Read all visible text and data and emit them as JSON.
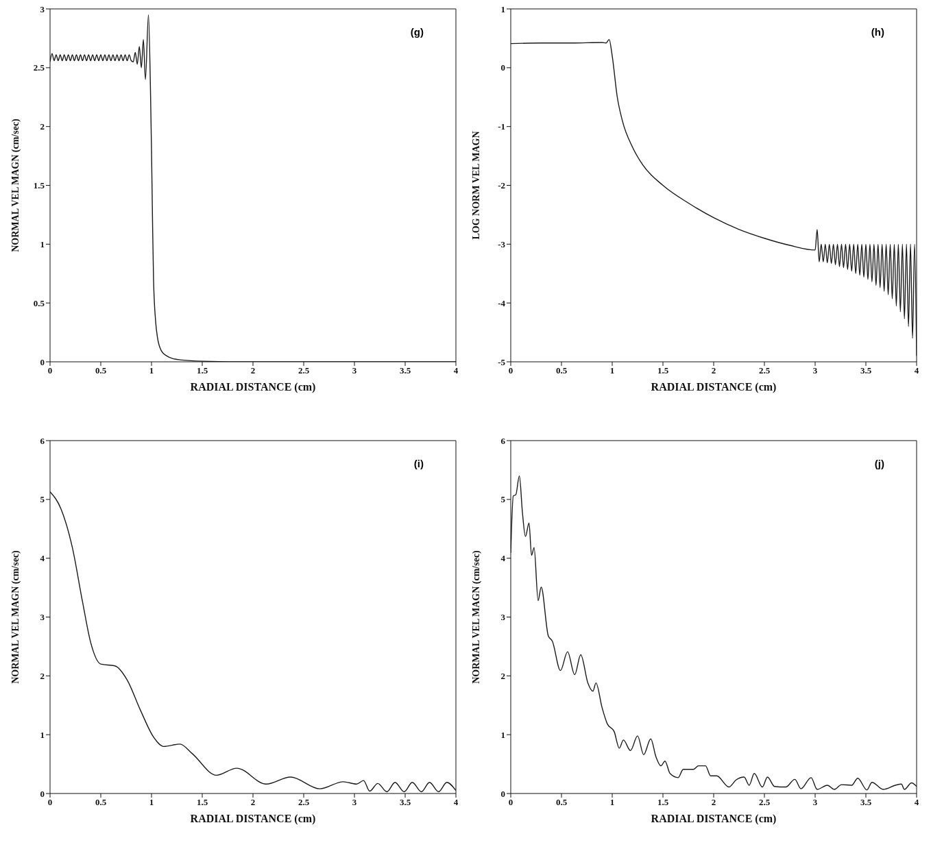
{
  "chart_data": [
    {
      "type": "line",
      "xlabel": "RADIAL DISTANCE (cm)",
      "ylabel": "NORMAL VEL MAGN (cm/sec)",
      "annotations": [
        "(g)"
      ],
      "line_style": "solid",
      "marker": "none",
      "xlim": [
        0,
        4
      ],
      "xticks": [
        0,
        0.5,
        1,
        1.5,
        2,
        2.5,
        3,
        3.5,
        4
      ],
      "ylim": [
        0,
        3
      ],
      "yticks": [
        0,
        0.5,
        1,
        1.5,
        2,
        2.5,
        3
      ],
      "x": [
        0,
        0.02,
        0.04,
        0.06,
        0.08,
        0.1,
        0.12,
        0.14,
        0.16,
        0.18,
        0.2,
        0.22,
        0.24,
        0.26,
        0.28,
        0.3,
        0.32,
        0.34,
        0.36,
        0.38,
        0.4,
        0.42,
        0.44,
        0.46,
        0.48,
        0.5,
        0.52,
        0.54,
        0.56,
        0.58,
        0.6,
        0.62,
        0.64,
        0.66,
        0.68,
        0.7,
        0.72,
        0.74,
        0.76,
        0.78,
        0.8,
        0.82,
        0.84,
        0.86,
        0.88,
        0.9,
        0.92,
        0.94,
        0.97,
        0.99,
        1.0,
        1.01,
        1.02,
        1.04,
        1.06,
        1.1,
        1.15,
        1.2,
        1.3,
        1.5,
        2,
        4
      ],
      "series": [
        {
          "color": "#1a1a1a",
          "values": [
            2.55,
            2.62,
            2.56,
            2.61,
            2.56,
            2.61,
            2.56,
            2.61,
            2.56,
            2.61,
            2.56,
            2.61,
            2.56,
            2.61,
            2.56,
            2.61,
            2.56,
            2.61,
            2.56,
            2.61,
            2.56,
            2.61,
            2.56,
            2.61,
            2.56,
            2.61,
            2.56,
            2.61,
            2.56,
            2.61,
            2.56,
            2.61,
            2.56,
            2.61,
            2.56,
            2.61,
            2.56,
            2.61,
            2.56,
            2.61,
            2.56,
            2.55,
            2.63,
            2.53,
            2.68,
            2.5,
            2.74,
            2.4,
            2.95,
            2.3,
            1.8,
            1.2,
            0.7,
            0.35,
            0.2,
            0.09,
            0.05,
            0.03,
            0.015,
            0.005,
            0,
            0
          ]
        }
      ]
    },
    {
      "type": "line",
      "xlabel": "RADIAL DISTANCE (cm)",
      "ylabel": "LOG NORM VEL MAGN",
      "annotations": [
        "(h)"
      ],
      "line_style": "solid",
      "marker": "none",
      "xlim": [
        0,
        4
      ],
      "xticks": [
        0,
        0.5,
        1,
        1.5,
        2,
        2.5,
        3,
        3.5,
        4
      ],
      "ylim": [
        -5,
        1
      ],
      "yticks": [
        -5,
        -4,
        -3,
        -2,
        -1,
        0,
        1
      ],
      "x": [
        0,
        0.3,
        0.6,
        0.9,
        0.94,
        0.97,
        1.0,
        1.05,
        1.1,
        1.2,
        1.3,
        1.5,
        1.75,
        2.0,
        2.25,
        2.5,
        2.75,
        3.0,
        3.02,
        3.04,
        3.06,
        3.08,
        3.1,
        3.12,
        3.14,
        3.16,
        3.18,
        3.2,
        3.22,
        3.24,
        3.26,
        3.28,
        3.3,
        3.32,
        3.34,
        3.36,
        3.38,
        3.4,
        3.42,
        3.44,
        3.46,
        3.48,
        3.5,
        3.52,
        3.54,
        3.56,
        3.58,
        3.6,
        3.62,
        3.64,
        3.66,
        3.68,
        3.7,
        3.72,
        3.74,
        3.76,
        3.78,
        3.8,
        3.82,
        3.84,
        3.86,
        3.88,
        3.9,
        3.92,
        3.94,
        3.96,
        3.98,
        4.0
      ],
      "series": [
        {
          "color": "#1a1a1a",
          "values": [
            0.41,
            0.42,
            0.42,
            0.43,
            0.42,
            0.48,
            0.2,
            -0.5,
            -0.9,
            -1.35,
            -1.65,
            -2.0,
            -2.3,
            -2.55,
            -2.75,
            -2.9,
            -3.02,
            -3.1,
            -2.75,
            -3.3,
            -3.0,
            -3.3,
            -3.0,
            -3.32,
            -3.0,
            -3.33,
            -3.0,
            -3.35,
            -3.0,
            -3.38,
            -3.0,
            -3.4,
            -3.0,
            -3.43,
            -3.0,
            -3.46,
            -3.0,
            -3.5,
            -3.0,
            -3.53,
            -3.0,
            -3.56,
            -3.0,
            -3.6,
            -3.0,
            -3.64,
            -3.0,
            -3.7,
            -3.0,
            -3.74,
            -3.0,
            -3.8,
            -3.0,
            -3.86,
            -3.0,
            -3.93,
            -3.0,
            -4.05,
            -3.0,
            -4.15,
            -3.0,
            -4.27,
            -3.0,
            -4.4,
            -3.0,
            -4.6,
            -3.0,
            -4.9
          ]
        }
      ]
    },
    {
      "type": "line",
      "xlabel": "RADIAL DISTANCE (cm)",
      "ylabel": "NORMAL VEL MAGN (cm/sec)",
      "annotations": [
        "(i)"
      ],
      "line_style": "solid",
      "marker": "none",
      "xlim": [
        0,
        4
      ],
      "xticks": [
        0,
        0.5,
        1,
        1.5,
        2,
        2.5,
        3,
        3.5,
        4
      ],
      "ylim": [
        0,
        6
      ],
      "yticks": [
        0,
        1,
        2,
        3,
        4,
        5,
        6
      ],
      "x": [
        0,
        0.11,
        0.22,
        0.32,
        0.4,
        0.5,
        0.64,
        0.76,
        0.89,
        1.02,
        1.12,
        1.28,
        1.4,
        1.64,
        1.84,
        2.13,
        2.37,
        2.66,
        2.89,
        3.02,
        3.09,
        3.15,
        3.23,
        3.32,
        3.4,
        3.49,
        3.57,
        3.66,
        3.74,
        3.83,
        3.91,
        4.0
      ],
      "series": [
        {
          "color": "#1a1a1a",
          "values": [
            5.13,
            4.83,
            4.18,
            3.26,
            2.57,
            2.2,
            2.17,
            1.93,
            1.42,
            0.96,
            0.8,
            0.84,
            0.68,
            0.31,
            0.43,
            0.16,
            0.28,
            0.08,
            0.2,
            0.16,
            0.22,
            0.04,
            0.17,
            0.03,
            0.19,
            0.03,
            0.19,
            0.03,
            0.19,
            0.03,
            0.19,
            0.05
          ]
        }
      ]
    },
    {
      "type": "line",
      "xlabel": "RADIAL DISTANCE (cm)",
      "ylabel": "NORMAL VEL MAGN (cm/sec)",
      "annotations": [
        "(j)"
      ],
      "line_style": "solid",
      "marker": "none",
      "xlim": [
        0,
        4
      ],
      "xticks": [
        0,
        0.5,
        1,
        1.5,
        2,
        2.5,
        3,
        3.5,
        4
      ],
      "ylim": [
        0,
        6
      ],
      "yticks": [
        0,
        1,
        2,
        3,
        4,
        5,
        6
      ],
      "x": [
        0,
        0.025,
        0.05,
        0.085,
        0.115,
        0.145,
        0.18,
        0.205,
        0.23,
        0.27,
        0.3,
        0.37,
        0.41,
        0.49,
        0.56,
        0.63,
        0.69,
        0.76,
        0.81,
        0.84,
        0.9,
        0.95,
        1.02,
        1.07,
        1.11,
        1.18,
        1.25,
        1.31,
        1.38,
        1.43,
        1.48,
        1.52,
        1.57,
        1.65,
        1.7,
        1.8,
        1.85,
        1.92,
        1.97,
        2.03,
        2.15,
        2.22,
        2.3,
        2.35,
        2.4,
        2.48,
        2.53,
        2.6,
        2.71,
        2.8,
        2.86,
        2.96,
        3.02,
        3.12,
        3.19,
        3.26,
        3.36,
        3.42,
        3.51,
        3.56,
        3.67,
        3.79,
        3.85,
        3.88,
        3.95,
        4.0
      ],
      "series": [
        {
          "color": "#1a1a1a",
          "values": [
            4.09,
            5.06,
            5.08,
            5.4,
            4.78,
            4.37,
            4.6,
            4.05,
            4.18,
            3.28,
            3.51,
            2.68,
            2.59,
            2.09,
            2.41,
            2.02,
            2.36,
            1.88,
            1.74,
            1.88,
            1.46,
            1.19,
            1.05,
            0.77,
            0.91,
            0.73,
            0.98,
            0.66,
            0.93,
            0.63,
            0.47,
            0.55,
            0.34,
            0.27,
            0.41,
            0.41,
            0.47,
            0.47,
            0.3,
            0.3,
            0.11,
            0.23,
            0.28,
            0.14,
            0.34,
            0.11,
            0.28,
            0.12,
            0.11,
            0.24,
            0.08,
            0.27,
            0.07,
            0.14,
            0.07,
            0.15,
            0.14,
            0.26,
            0.06,
            0.19,
            0.07,
            0.14,
            0.16,
            0.07,
            0.18,
            0.12
          ]
        }
      ]
    }
  ]
}
